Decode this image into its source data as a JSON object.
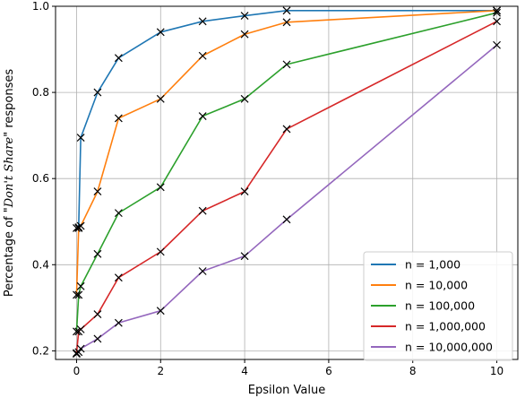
{
  "chart_data": {
    "type": "line",
    "title": "",
    "xlabel": "Epsilon Value",
    "ylabel_parts": [
      "Percentage of \"",
      "Don't Share",
      "\" responses"
    ],
    "x": [
      0,
      0.05,
      0.1,
      0.5,
      1,
      2,
      3,
      4,
      5,
      10
    ],
    "xlim": [
      -0.5,
      10.5
    ],
    "ylim": [
      0.18,
      1.0
    ],
    "xticks": [
      0,
      2,
      4,
      6,
      8,
      10
    ],
    "yticks": [
      0.2,
      0.4,
      0.6,
      0.8,
      1.0
    ],
    "xtick_labels": [
      "0",
      "2",
      "4",
      "6",
      "8",
      "10"
    ],
    "ytick_labels": [
      "0.2",
      "0.4",
      "0.6",
      "0.8",
      "1.0"
    ],
    "grid": true,
    "marker": "x",
    "legend_position": "lower-right",
    "series": [
      {
        "name": "n = 1,000",
        "color": "#1f77b4",
        "values": [
          0.485,
          0.487,
          0.695,
          0.8,
          0.88,
          0.94,
          0.965,
          0.978,
          0.99,
          0.99
        ]
      },
      {
        "name": "n = 10,000",
        "color": "#ff7f0e",
        "values": [
          0.33,
          0.485,
          0.49,
          0.57,
          0.74,
          0.785,
          0.885,
          0.935,
          0.963,
          0.99
        ]
      },
      {
        "name": "n = 100,000",
        "color": "#2ca02c",
        "values": [
          0.245,
          0.33,
          0.35,
          0.425,
          0.52,
          0.58,
          0.745,
          0.785,
          0.865,
          0.985
        ]
      },
      {
        "name": "n = 1,000,000",
        "color": "#d62728",
        "values": [
          0.195,
          0.245,
          0.25,
          0.285,
          0.37,
          0.43,
          0.525,
          0.57,
          0.715,
          0.965
        ]
      },
      {
        "name": "n = 10,000,000",
        "color": "#9467bd",
        "values": [
          0.193,
          0.197,
          0.205,
          0.228,
          0.265,
          0.293,
          0.385,
          0.42,
          0.505,
          0.91
        ]
      }
    ]
  }
}
